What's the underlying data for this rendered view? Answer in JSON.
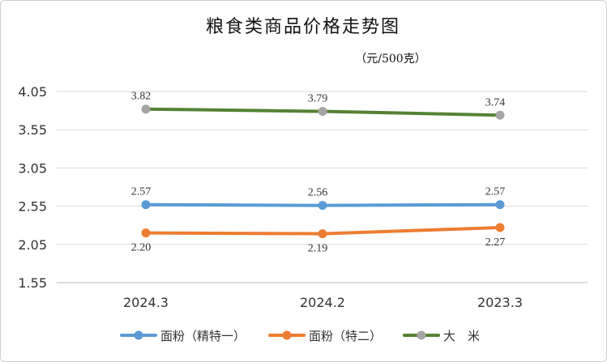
{
  "chart_data": {
    "type": "line",
    "title": "粮食类商品价格走势图",
    "subtitle": "（元/500克）",
    "categories": [
      "2024.3",
      "2024.2",
      "2023.3"
    ],
    "yticks": [
      "4.05",
      "3.55",
      "3.05",
      "2.55",
      "2.05",
      "1.55"
    ],
    "ylim": [
      1.55,
      4.05
    ],
    "grid": true,
    "legend_position": "bottom",
    "series": [
      {
        "name": "面粉（精特一）",
        "color": "#5b9bd5",
        "values": [
          2.57,
          2.56,
          2.57
        ],
        "labels": [
          "2.57",
          "2.56",
          "2.57"
        ],
        "label_side": "above"
      },
      {
        "name": "面粉（特二）",
        "color": "#ed7d31",
        "values": [
          2.2,
          2.19,
          2.27
        ],
        "labels": [
          "2.20",
          "2.19",
          "2.27"
        ],
        "label_side": "below"
      },
      {
        "name": "大　米",
        "color": "#548235",
        "marker_color": "#a5a5a5",
        "values": [
          3.82,
          3.79,
          3.74
        ],
        "labels": [
          "3.82",
          "3.79",
          "3.74"
        ],
        "label_side": "above"
      }
    ]
  }
}
